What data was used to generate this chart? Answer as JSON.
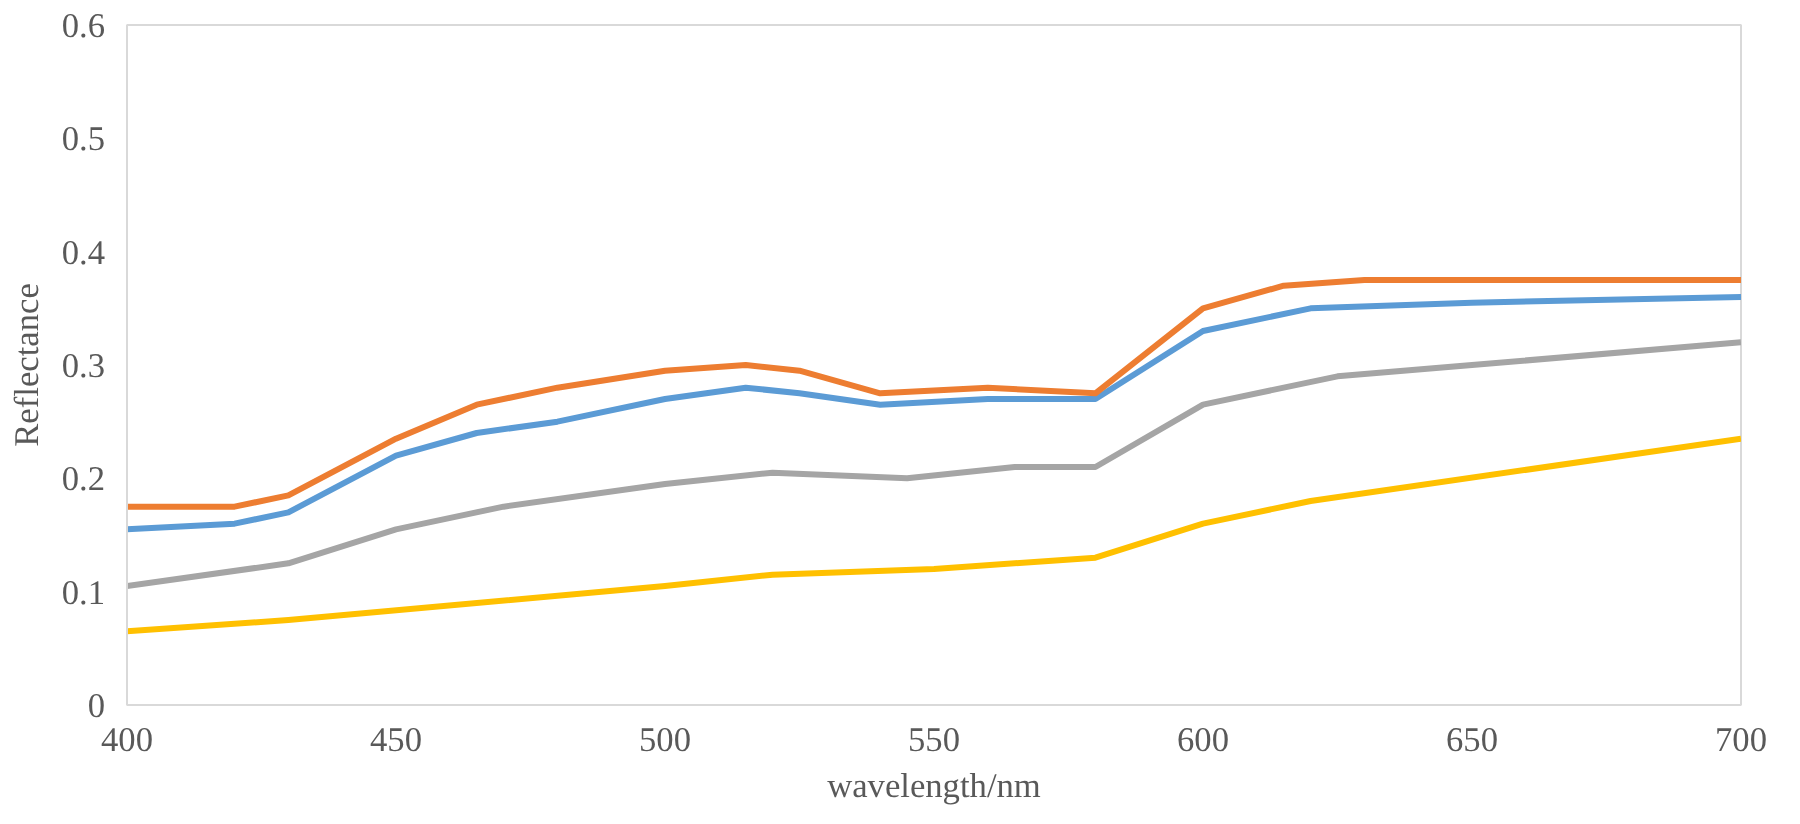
{
  "chart_data": {
    "type": "line",
    "xlabel": "wavelength/nm",
    "ylabel": "Reflectance",
    "xlim": [
      400,
      700
    ],
    "xticks": [
      400,
      450,
      500,
      550,
      600,
      650,
      700
    ],
    "ylim": [
      0,
      0.6
    ],
    "yticks": [
      0,
      0.1,
      0.2,
      0.3,
      0.4,
      0.5,
      0.6
    ],
    "grid": false,
    "marker": "none",
    "line_style": "solid",
    "series": [
      {
        "color": "#5b9bd5",
        "x": [
          400,
          420,
          430,
          450,
          465,
          480,
          500,
          515,
          525,
          540,
          560,
          580,
          600,
          620,
          650,
          700
        ],
        "values": [
          0.155,
          0.16,
          0.17,
          0.22,
          0.24,
          0.25,
          0.27,
          0.28,
          0.275,
          0.265,
          0.27,
          0.27,
          0.33,
          0.35,
          0.355,
          0.36
        ]
      },
      {
        "color": "#ed7d31",
        "x": [
          400,
          420,
          430,
          450,
          465,
          480,
          500,
          515,
          525,
          540,
          560,
          580,
          600,
          615,
          630,
          700
        ],
        "values": [
          0.175,
          0.175,
          0.185,
          0.235,
          0.265,
          0.28,
          0.295,
          0.3,
          0.295,
          0.275,
          0.28,
          0.275,
          0.35,
          0.37,
          0.375,
          0.375
        ]
      },
      {
        "color": "#a5a5a5",
        "x": [
          400,
          430,
          450,
          470,
          500,
          520,
          545,
          565,
          580,
          600,
          625,
          650,
          700
        ],
        "values": [
          0.105,
          0.125,
          0.155,
          0.175,
          0.195,
          0.205,
          0.2,
          0.21,
          0.21,
          0.265,
          0.29,
          0.3,
          0.32
        ]
      },
      {
        "color": "#ffc000",
        "x": [
          400,
          430,
          500,
          520,
          550,
          580,
          600,
          620,
          700
        ],
        "values": [
          0.065,
          0.075,
          0.105,
          0.115,
          0.12,
          0.13,
          0.16,
          0.18,
          0.235
        ]
      }
    ]
  }
}
